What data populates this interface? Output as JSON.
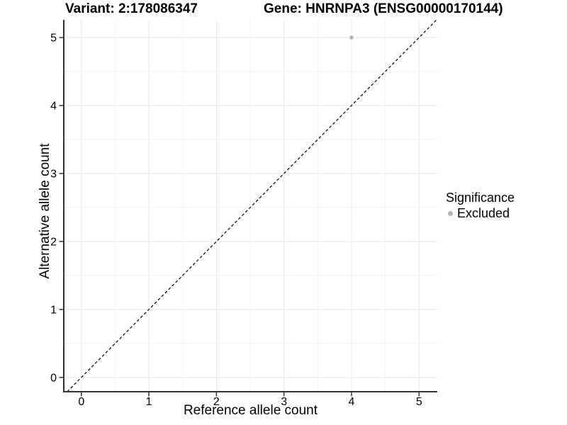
{
  "chart_data": {
    "type": "scatter",
    "titles": {
      "left": "Variant: 2:178086347",
      "right": "Gene: HNRNPA3 (ENSG00000170144)"
    },
    "xlabel": "Reference allele count",
    "ylabel": "Alternative allele count",
    "xlim": [
      -0.26,
      5.27
    ],
    "ylim": [
      -0.21,
      5.26
    ],
    "x_ticks": [
      0,
      1,
      2,
      3,
      4,
      5
    ],
    "y_ticks": [
      0,
      1,
      2,
      3,
      4,
      5
    ],
    "x_minor_ticks": [
      0.5,
      1.5,
      2.5,
      3.5,
      4.5
    ],
    "y_minor_ticks": [
      0.5,
      1.5,
      2.5,
      3.5,
      4.5
    ],
    "grid": "major and minor, light grey on white panel",
    "series": [
      {
        "name": "Excluded",
        "color": "#b3b3b3",
        "points": [
          {
            "x": 4,
            "y": 5
          }
        ]
      }
    ],
    "reference_line": {
      "kind": "identity y=x",
      "style": "dashed",
      "color": "#000000"
    },
    "legend": {
      "title": "Significance",
      "position": "right",
      "entries": [
        {
          "label": "Excluded",
          "color": "#b3b3b3"
        }
      ]
    },
    "colors": {
      "background": "#ffffff",
      "grid_major": "#e6e6e6",
      "grid_minor": "#f2f2f2",
      "axis_line": "#333333",
      "tick": "#333333",
      "text": "#000000"
    }
  }
}
